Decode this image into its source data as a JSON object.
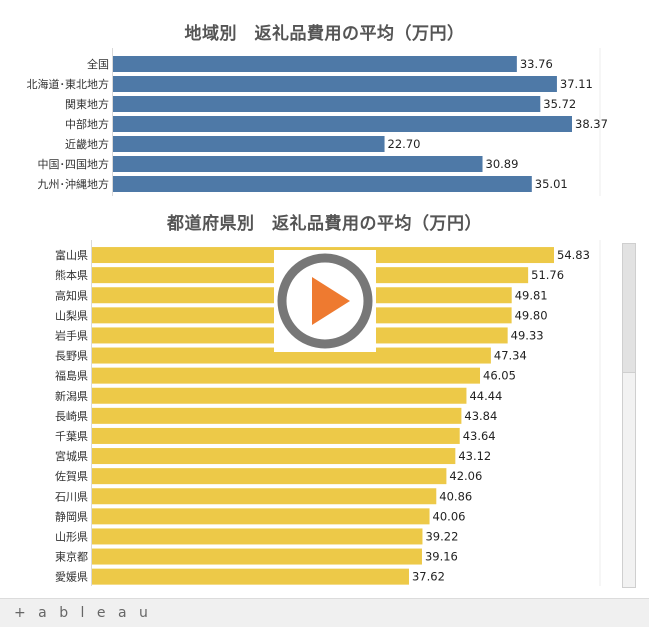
{
  "chart_data": [
    {
      "type": "bar",
      "orientation": "horizontal",
      "title": "地域別　返礼品費用の平均（万円）",
      "color": "#4e79a7",
      "categories": [
        "全国",
        "北海道･東北地方",
        "関東地方",
        "中部地方",
        "近畿地方",
        "中国･四国地方",
        "九州･沖縄地方"
      ],
      "values": [
        33.76,
        37.11,
        35.72,
        38.37,
        22.7,
        30.89,
        35.01
      ],
      "value_labels": [
        "33.76",
        "37.11",
        "35.72",
        "38.37",
        "22.70",
        "30.89",
        "35.01"
      ],
      "xlim": [
        0,
        38.37
      ],
      "grid": false
    },
    {
      "type": "bar",
      "orientation": "horizontal",
      "title": "都道府県別　返礼品費用の平均（万円）",
      "color": "#edc948",
      "categories": [
        "富山県",
        "熊本県",
        "高知県",
        "山梨県",
        "岩手県",
        "長野県",
        "福島県",
        "新潟県",
        "長崎県",
        "千葉県",
        "宮城県",
        "佐賀県",
        "石川県",
        "静岡県",
        "山形県",
        "東京都",
        "愛媛県"
      ],
      "values": [
        54.83,
        51.76,
        49.81,
        49.8,
        49.33,
        47.34,
        46.05,
        44.44,
        43.84,
        43.64,
        43.12,
        42.06,
        40.86,
        40.06,
        39.22,
        39.16,
        37.62
      ],
      "value_labels": [
        "54.83",
        "51.76",
        "49.81",
        "49.80",
        "49.33",
        "47.34",
        "46.05",
        "44.44",
        "43.84",
        "43.64",
        "43.12",
        "42.06",
        "40.86",
        "40.06",
        "39.22",
        "39.16",
        "37.62"
      ],
      "xlim": [
        0,
        54.83
      ],
      "grid": false
    }
  ],
  "footer": {
    "logo_text": "+ a b l e a u"
  },
  "icons": {
    "play": "play-icon",
    "tableau": "tableau-logo-icon"
  },
  "colors": {
    "play_ring": "#777777",
    "play_arrow": "#ee7a30"
  }
}
